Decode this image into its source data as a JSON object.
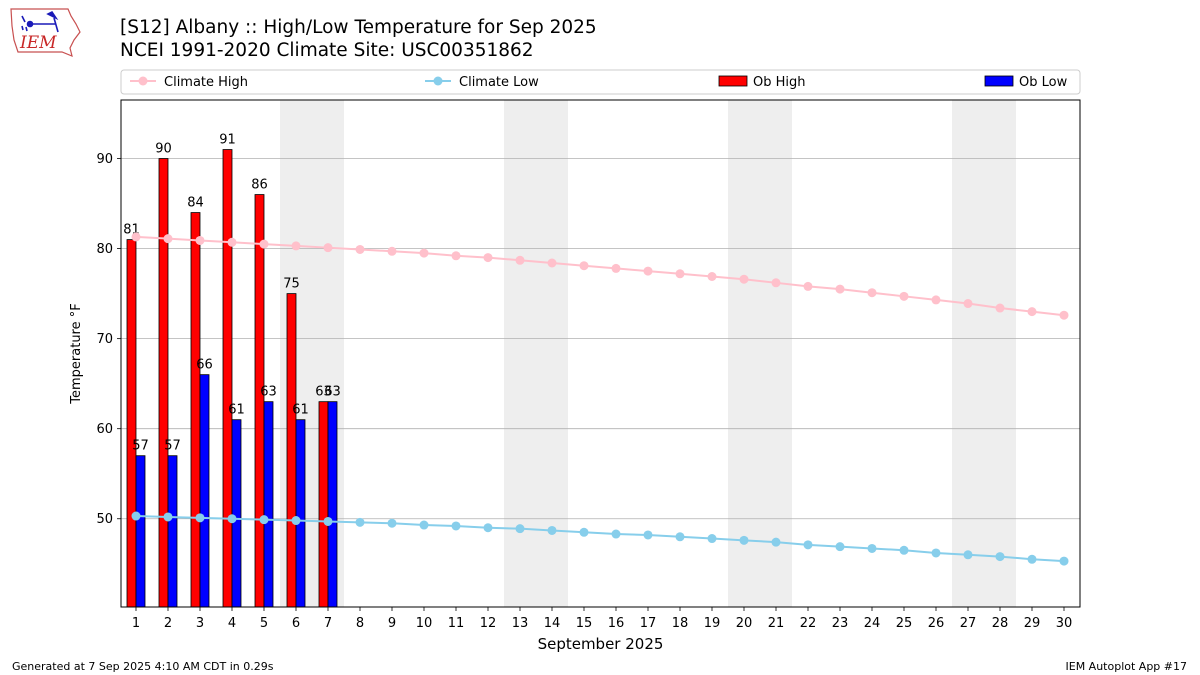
{
  "header": {
    "title_line1": "[S12] Albany :: High/Low Temperature for Sep 2025",
    "title_line2": "NCEI 1991-2020 Climate Site: USC00351862"
  },
  "logo": {
    "text": "IEM"
  },
  "footer": {
    "left": "Generated at 7 Sep 2025 4:10 AM CDT in 0.29s",
    "right": "IEM Autoplot App #17"
  },
  "chart_data": {
    "type": "bar",
    "title": "[S12] Albany :: High/Low Temperature for Sep 2025",
    "subtitle": "NCEI 1991-2020 Climate Site: USC00351862",
    "xlabel": "September 2025",
    "ylabel": "Temperature °F",
    "ylim": [
      40.2,
      96.5
    ],
    "yticks": [
      50,
      60,
      70,
      80,
      90
    ],
    "grid": "horizontal",
    "legend_position": "top",
    "days": [
      1,
      2,
      3,
      4,
      5,
      6,
      7,
      8,
      9,
      10,
      11,
      12,
      13,
      14,
      15,
      16,
      17,
      18,
      19,
      20,
      21,
      22,
      23,
      24,
      25,
      26,
      27,
      28,
      29,
      30
    ],
    "weekend_shading": [
      [
        6,
        7
      ],
      [
        13,
        14
      ],
      [
        20,
        21
      ],
      [
        27,
        28
      ]
    ],
    "series": [
      {
        "name": "Climate High",
        "kind": "line",
        "color": "#ffc0cb",
        "values": [
          81.3,
          81.1,
          80.9,
          80.7,
          80.5,
          80.3,
          80.1,
          79.9,
          79.7,
          79.5,
          79.2,
          79.0,
          78.7,
          78.4,
          78.1,
          77.8,
          77.5,
          77.2,
          76.9,
          76.6,
          76.2,
          75.8,
          75.5,
          75.1,
          74.7,
          74.3,
          73.9,
          73.4,
          73.0,
          72.6
        ]
      },
      {
        "name": "Climate Low",
        "kind": "line",
        "color": "#87ceeb",
        "values": [
          50.3,
          50.2,
          50.1,
          50.0,
          49.9,
          49.8,
          49.7,
          49.6,
          49.5,
          49.3,
          49.2,
          49.0,
          48.9,
          48.7,
          48.5,
          48.3,
          48.2,
          48.0,
          47.8,
          47.6,
          47.4,
          47.1,
          46.9,
          46.7,
          46.5,
          46.2,
          46.0,
          45.8,
          45.5,
          45.3
        ]
      },
      {
        "name": "Ob High",
        "kind": "bar",
        "color": "#ff0000",
        "values": [
          81,
          90,
          84,
          91,
          86,
          75,
          63
        ],
        "labels": [
          "81",
          "90",
          "84",
          "91",
          "86",
          "75",
          "63"
        ]
      },
      {
        "name": "Ob Low",
        "kind": "bar",
        "color": "#0000ff",
        "values": [
          57,
          57,
          66,
          61,
          63,
          61,
          63
        ],
        "labels": [
          "57",
          "57",
          "66",
          "61",
          "63",
          "61",
          "63"
        ]
      }
    ]
  }
}
